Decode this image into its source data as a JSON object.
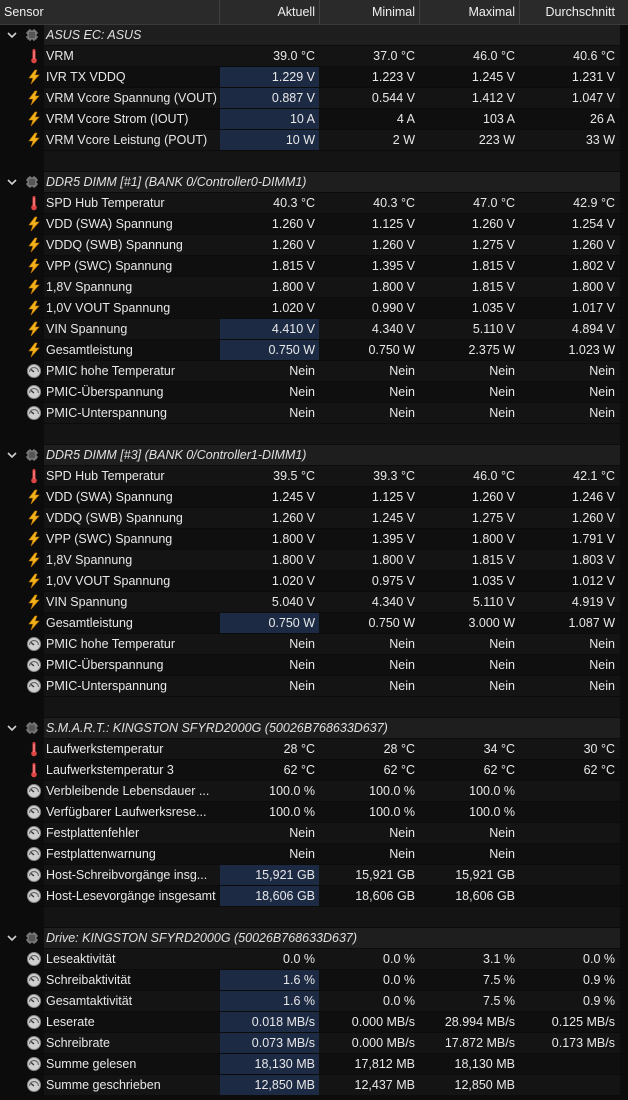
{
  "header": {
    "sensor": "Sensor",
    "current": "Aktuell",
    "min": "Minimal",
    "max": "Maximal",
    "avg": "Durchschnitt"
  },
  "groups": [
    {
      "title": "ASUS EC: ASUS",
      "rows": [
        {
          "icon": "thermometer-icon",
          "name": "VRM",
          "cur": "39.0 °C",
          "min": "37.0 °C",
          "max": "46.0 °C",
          "avg": "40.6 °C",
          "hl": false
        },
        {
          "icon": "lightning-icon",
          "name": "IVR TX VDDQ",
          "cur": "1.229 V",
          "min": "1.223 V",
          "max": "1.245 V",
          "avg": "1.231 V",
          "hl": true
        },
        {
          "icon": "lightning-icon",
          "name": "VRM Vcore Spannung (VOUT)",
          "cur": "0.887 V",
          "min": "0.544 V",
          "max": "1.412 V",
          "avg": "1.047 V",
          "hl": true
        },
        {
          "icon": "lightning-icon",
          "name": "VRM Vcore Strom (IOUT)",
          "cur": "10 A",
          "min": "4 A",
          "max": "103 A",
          "avg": "26 A",
          "hl": true
        },
        {
          "icon": "lightning-icon",
          "name": "VRM Vcore Leistung (POUT)",
          "cur": "10 W",
          "min": "2 W",
          "max": "223 W",
          "avg": "33 W",
          "hl": true
        }
      ]
    },
    {
      "title": "DDR5 DIMM [#1] (BANK 0/Controller0-DIMM1)",
      "rows": [
        {
          "icon": "thermometer-icon",
          "name": "SPD Hub Temperatur",
          "cur": "40.3 °C",
          "min": "40.3 °C",
          "max": "47.0 °C",
          "avg": "42.9 °C",
          "hl": false
        },
        {
          "icon": "lightning-icon",
          "name": "VDD (SWA) Spannung",
          "cur": "1.260 V",
          "min": "1.125 V",
          "max": "1.260 V",
          "avg": "1.254 V",
          "hl": false
        },
        {
          "icon": "lightning-icon",
          "name": "VDDQ (SWB) Spannung",
          "cur": "1.260 V",
          "min": "1.260 V",
          "max": "1.275 V",
          "avg": "1.260 V",
          "hl": false
        },
        {
          "icon": "lightning-icon",
          "name": "VPP (SWC) Spannung",
          "cur": "1.815 V",
          "min": "1.395 V",
          "max": "1.815 V",
          "avg": "1.802 V",
          "hl": false
        },
        {
          "icon": "lightning-icon",
          "name": "1,8V Spannung",
          "cur": "1.800 V",
          "min": "1.800 V",
          "max": "1.815 V",
          "avg": "1.800 V",
          "hl": false
        },
        {
          "icon": "lightning-icon",
          "name": "1,0V VOUT Spannung",
          "cur": "1.020 V",
          "min": "0.990 V",
          "max": "1.035 V",
          "avg": "1.017 V",
          "hl": false
        },
        {
          "icon": "lightning-icon",
          "name": "VIN Spannung",
          "cur": "4.410 V",
          "min": "4.340 V",
          "max": "5.110 V",
          "avg": "4.894 V",
          "hl": true
        },
        {
          "icon": "lightning-icon",
          "name": "Gesamtleistung",
          "cur": "0.750 W",
          "min": "0.750 W",
          "max": "2.375 W",
          "avg": "1.023 W",
          "hl": true
        },
        {
          "icon": "gauge-icon",
          "name": "PMIC hohe Temperatur",
          "cur": "Nein",
          "min": "Nein",
          "max": "Nein",
          "avg": "Nein",
          "hl": false
        },
        {
          "icon": "gauge-icon",
          "name": "PMIC-Überspannung",
          "cur": "Nein",
          "min": "Nein",
          "max": "Nein",
          "avg": "Nein",
          "hl": false
        },
        {
          "icon": "gauge-icon",
          "name": "PMIC-Unterspannung",
          "cur": "Nein",
          "min": "Nein",
          "max": "Nein",
          "avg": "Nein",
          "hl": false
        }
      ]
    },
    {
      "title": "DDR5 DIMM [#3] (BANK 0/Controller1-DIMM1)",
      "rows": [
        {
          "icon": "thermometer-icon",
          "name": "SPD Hub Temperatur",
          "cur": "39.5 °C",
          "min": "39.3 °C",
          "max": "46.0 °C",
          "avg": "42.1 °C",
          "hl": false
        },
        {
          "icon": "lightning-icon",
          "name": "VDD (SWA) Spannung",
          "cur": "1.245 V",
          "min": "1.125 V",
          "max": "1.260 V",
          "avg": "1.246 V",
          "hl": false
        },
        {
          "icon": "lightning-icon",
          "name": "VDDQ (SWB) Spannung",
          "cur": "1.260 V",
          "min": "1.245 V",
          "max": "1.275 V",
          "avg": "1.260 V",
          "hl": false
        },
        {
          "icon": "lightning-icon",
          "name": "VPP (SWC) Spannung",
          "cur": "1.800 V",
          "min": "1.395 V",
          "max": "1.800 V",
          "avg": "1.791 V",
          "hl": false
        },
        {
          "icon": "lightning-icon",
          "name": "1,8V Spannung",
          "cur": "1.800 V",
          "min": "1.800 V",
          "max": "1.815 V",
          "avg": "1.803 V",
          "hl": false
        },
        {
          "icon": "lightning-icon",
          "name": "1,0V VOUT Spannung",
          "cur": "1.020 V",
          "min": "0.975 V",
          "max": "1.035 V",
          "avg": "1.012 V",
          "hl": false
        },
        {
          "icon": "lightning-icon",
          "name": "VIN Spannung",
          "cur": "5.040 V",
          "min": "4.340 V",
          "max": "5.110 V",
          "avg": "4.919 V",
          "hl": false
        },
        {
          "icon": "lightning-icon",
          "name": "Gesamtleistung",
          "cur": "0.750 W",
          "min": "0.750 W",
          "max": "3.000 W",
          "avg": "1.087 W",
          "hl": true
        },
        {
          "icon": "gauge-icon",
          "name": "PMIC hohe Temperatur",
          "cur": "Nein",
          "min": "Nein",
          "max": "Nein",
          "avg": "Nein",
          "hl": false
        },
        {
          "icon": "gauge-icon",
          "name": "PMIC-Überspannung",
          "cur": "Nein",
          "min": "Nein",
          "max": "Nein",
          "avg": "Nein",
          "hl": false
        },
        {
          "icon": "gauge-icon",
          "name": "PMIC-Unterspannung",
          "cur": "Nein",
          "min": "Nein",
          "max": "Nein",
          "avg": "Nein",
          "hl": false
        }
      ]
    },
    {
      "title": "S.M.A.R.T.: KINGSTON SFYRD2000G (50026B768633D637)",
      "rows": [
        {
          "icon": "thermometer-icon",
          "name": "Laufwerkstemperatur",
          "cur": "28 °C",
          "min": "28 °C",
          "max": "34 °C",
          "avg": "30 °C",
          "hl": false
        },
        {
          "icon": "thermometer-icon",
          "name": "Laufwerkstemperatur 3",
          "cur": "62 °C",
          "min": "62 °C",
          "max": "62 °C",
          "avg": "62 °C",
          "hl": false
        },
        {
          "icon": "gauge-icon",
          "name": "Verbleibende Lebensdauer ...",
          "cur": "100.0 %",
          "min": "100.0 %",
          "max": "100.0 %",
          "avg": "",
          "hl": false
        },
        {
          "icon": "gauge-icon",
          "name": "Verfügbarer Laufwerksrese...",
          "cur": "100.0 %",
          "min": "100.0 %",
          "max": "100.0 %",
          "avg": "",
          "hl": false
        },
        {
          "icon": "gauge-icon",
          "name": "Festplattenfehler",
          "cur": "Nein",
          "min": "Nein",
          "max": "Nein",
          "avg": "",
          "hl": false
        },
        {
          "icon": "gauge-icon",
          "name": "Festplattenwarnung",
          "cur": "Nein",
          "min": "Nein",
          "max": "Nein",
          "avg": "",
          "hl": false
        },
        {
          "icon": "gauge-icon",
          "name": "Host-Schreibvorgänge insg...",
          "cur": "15,921 GB",
          "min": "15,921 GB",
          "max": "15,921 GB",
          "avg": "",
          "hl": true
        },
        {
          "icon": "gauge-icon",
          "name": "Host-Lesevorgänge insgesamt",
          "cur": "18,606 GB",
          "min": "18,606 GB",
          "max": "18,606 GB",
          "avg": "",
          "hl": true
        }
      ]
    },
    {
      "title": "Drive: KINGSTON SFYRD2000G (50026B768633D637)",
      "rows": [
        {
          "icon": "gauge-icon",
          "name": "Leseaktivität",
          "cur": "0.0 %",
          "min": "0.0 %",
          "max": "3.1 %",
          "avg": "0.0 %",
          "hl": false
        },
        {
          "icon": "gauge-icon",
          "name": "Schreibaktivität",
          "cur": "1.6 %",
          "min": "0.0 %",
          "max": "7.5 %",
          "avg": "0.9 %",
          "hl": true
        },
        {
          "icon": "gauge-icon",
          "name": "Gesamtaktivität",
          "cur": "1.6 %",
          "min": "0.0 %",
          "max": "7.5 %",
          "avg": "0.9 %",
          "hl": true
        },
        {
          "icon": "gauge-icon",
          "name": "Leserate",
          "cur": "0.018 MB/s",
          "min": "0.000 MB/s",
          "max": "28.994 MB/s",
          "avg": "0.125 MB/s",
          "hl": true
        },
        {
          "icon": "gauge-icon",
          "name": "Schreibrate",
          "cur": "0.073 MB/s",
          "min": "0.000 MB/s",
          "max": "17.872 MB/s",
          "avg": "0.173 MB/s",
          "hl": true
        },
        {
          "icon": "gauge-icon",
          "name": "Summe gelesen",
          "cur": "18,130 MB",
          "min": "17,812 MB",
          "max": "18,130 MB",
          "avg": "",
          "hl": true
        },
        {
          "icon": "gauge-icon",
          "name": "Summe geschrieben",
          "cur": "12,850 MB",
          "min": "12,437 MB",
          "max": "12,850 MB",
          "avg": "",
          "hl": true
        }
      ]
    }
  ]
}
